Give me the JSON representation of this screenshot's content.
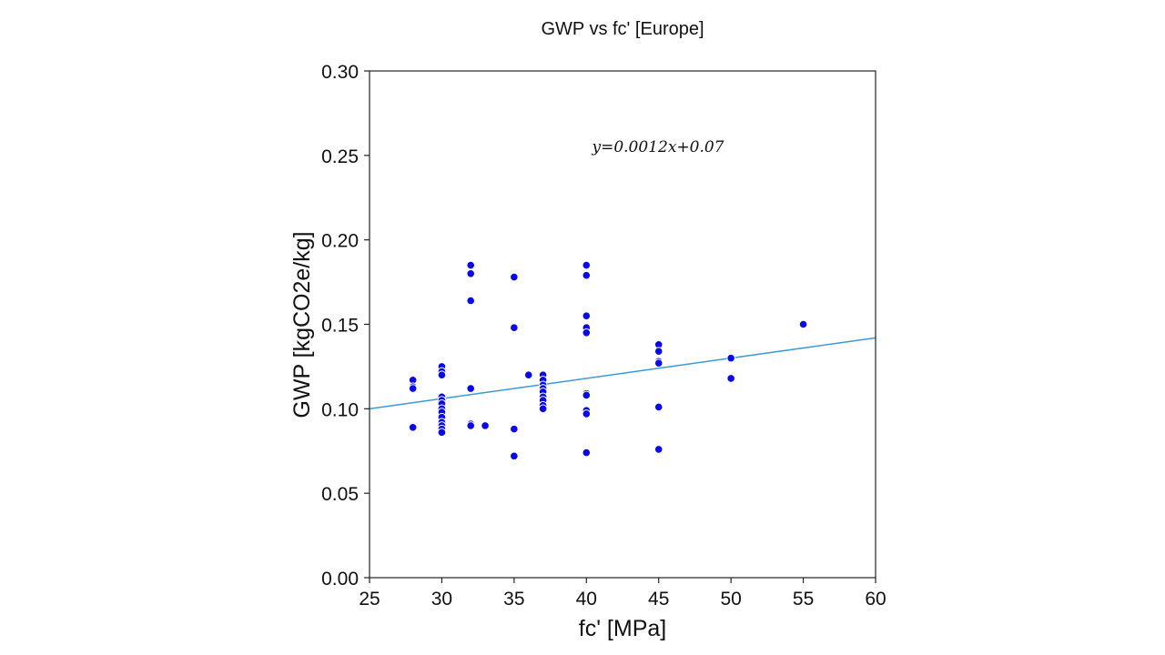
{
  "chart_data": {
    "type": "scatter",
    "title": "GWP vs fc' [Europe]",
    "xlabel": "fc' [MPa]",
    "ylabel": "GWP [kgCO2e/kg]",
    "xlim": [
      25,
      60
    ],
    "ylim": [
      0.0,
      0.3
    ],
    "xticks": [
      25,
      30,
      35,
      40,
      45,
      50,
      55,
      60
    ],
    "xtick_labels": [
      "25",
      "30",
      "35",
      "40",
      "45",
      "50",
      "55",
      "60"
    ],
    "yticks": [
      0.0,
      0.05,
      0.1,
      0.15,
      0.2,
      0.25,
      0.3
    ],
    "ytick_labels": [
      "0.00",
      "0.05",
      "0.10",
      "0.15",
      "0.20",
      "0.25",
      "0.30"
    ],
    "grid": false,
    "series": [
      {
        "name": "data",
        "color": "#0a0ae6",
        "points": [
          [
            28,
            0.117
          ],
          [
            28,
            0.113
          ],
          [
            28,
            0.112
          ],
          [
            28,
            0.089
          ],
          [
            30,
            0.125
          ],
          [
            30,
            0.122
          ],
          [
            30,
            0.12
          ],
          [
            30,
            0.107
          ],
          [
            30,
            0.105
          ],
          [
            30,
            0.103
          ],
          [
            30,
            0.1
          ],
          [
            30,
            0.098
          ],
          [
            30,
            0.095
          ],
          [
            30,
            0.092
          ],
          [
            30,
            0.09
          ],
          [
            30,
            0.088
          ],
          [
            30,
            0.086
          ],
          [
            32,
            0.185
          ],
          [
            32,
            0.18
          ],
          [
            32,
            0.164
          ],
          [
            32,
            0.112
          ],
          [
            32,
            0.091
          ],
          [
            32,
            0.09
          ],
          [
            33,
            0.09
          ],
          [
            35,
            0.178
          ],
          [
            35,
            0.148
          ],
          [
            35,
            0.088
          ],
          [
            35,
            0.072
          ],
          [
            36,
            0.12
          ],
          [
            37,
            0.12
          ],
          [
            37,
            0.117
          ],
          [
            37,
            0.114
          ],
          [
            37,
            0.112
          ],
          [
            37,
            0.11
          ],
          [
            37,
            0.107
          ],
          [
            37,
            0.105
          ],
          [
            37,
            0.102
          ],
          [
            37,
            0.1
          ],
          [
            40,
            0.185
          ],
          [
            40,
            0.179
          ],
          [
            40,
            0.155
          ],
          [
            40,
            0.148
          ],
          [
            40,
            0.145
          ],
          [
            40,
            0.109
          ],
          [
            40,
            0.108
          ],
          [
            40,
            0.099
          ],
          [
            40,
            0.097
          ],
          [
            40,
            0.074
          ],
          [
            45,
            0.138
          ],
          [
            45,
            0.134
          ],
          [
            45,
            0.128
          ],
          [
            45,
            0.127
          ],
          [
            45,
            0.101
          ],
          [
            45,
            0.076
          ],
          [
            50,
            0.13
          ],
          [
            50,
            0.118
          ],
          [
            55,
            0.15
          ]
        ]
      }
    ],
    "fit_line": {
      "slope": 0.0012,
      "intercept": 0.07,
      "color": "#3a9ad9",
      "equation_text": "y=0.0012x+0.07"
    }
  }
}
